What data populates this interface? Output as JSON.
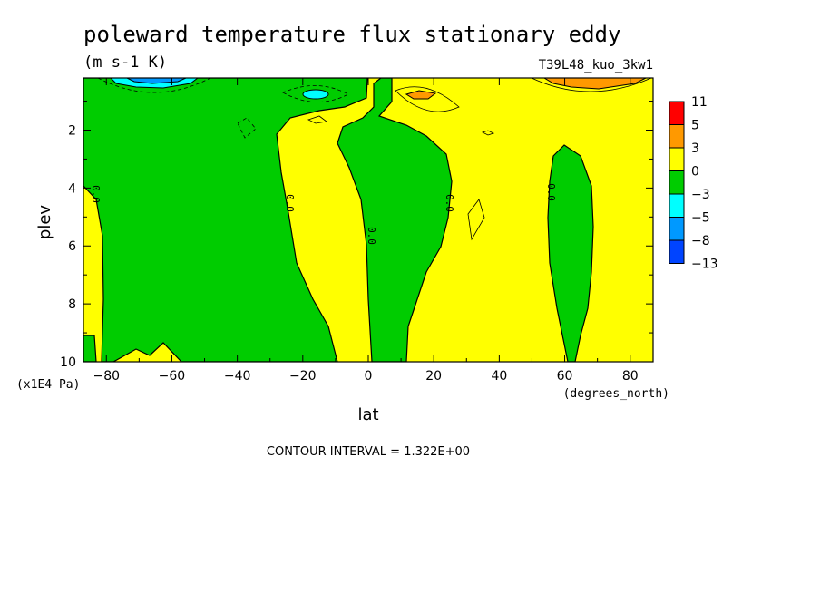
{
  "title": "poleward temperature flux stationary eddy",
  "units": "(m s-1 K)",
  "case_name": "T39L48_kuo_3kw1",
  "contour_interval": "CONTOUR INTERVAL = 1.322E+00",
  "chart_data": {
    "type": "heatmap",
    "xlabel": "lat",
    "x_units": "(degrees_north)",
    "ylabel": "plev",
    "y_units": "(x1E4 Pa)",
    "xlim": [
      -87,
      87
    ],
    "ylim": [
      10,
      0.2
    ],
    "y_inverted": true,
    "x_ticks": [
      -80,
      -60,
      -40,
      -20,
      0,
      20,
      40,
      60,
      80
    ],
    "y_ticks": [
      2,
      4,
      6,
      8,
      10
    ],
    "zero_contour_labels": [
      "0.0",
      "0.0",
      "0.0",
      "0.0",
      "0.0",
      "0.0"
    ],
    "colorbar": {
      "levels": [
        "11",
        "5",
        "3",
        "0",
        "−3",
        "−5",
        "−8",
        "−13"
      ],
      "colors": [
        "#ff0000",
        "#ff9900",
        "#ffff00",
        "#00cc00",
        "#00ffff",
        "#0099ff",
        "#0044ff"
      ]
    },
    "fill_colors": {
      "positive": "#ffff00",
      "positive_mid": "#ff9900",
      "negative": "#00cc00",
      "negative_mid": "#00ffff",
      "negative_strong": "#0099ff"
    }
  }
}
